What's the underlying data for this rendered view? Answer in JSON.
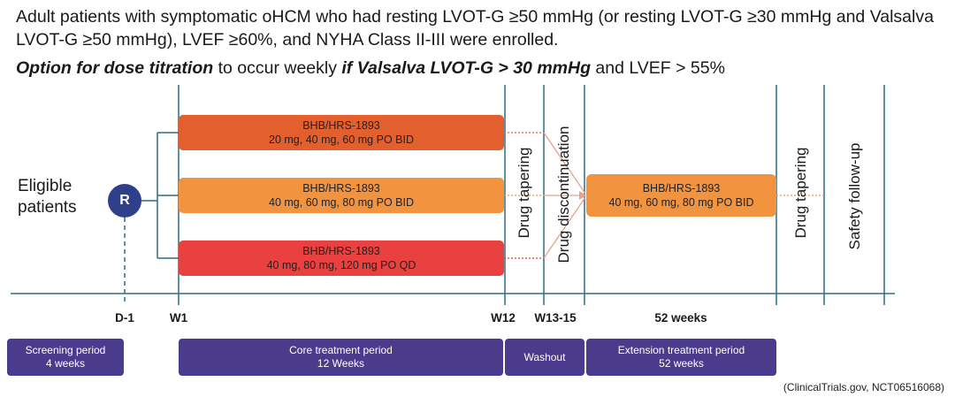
{
  "intro_text": "Adult patients with symptomatic oHCM who had resting LVOT-G ≥50 mmHg (or resting LVOT-G ≥30 mmHg and Valsalva LVOT-G ≥50 mmHg), LVEF ≥60%, and NYHA Class II-III were enrolled.",
  "note": {
    "part1": "Option for dose titration",
    "part2": " to occur weekly ",
    "part3": "if Valsalva LVOT-G > 30 mmHg",
    "part4": " and LVEF > 55%"
  },
  "eligible_label": "Eligible patients",
  "randomize_label": "R",
  "arms": [
    {
      "name": "BHB/HRS-1893",
      "dose": "20 mg, 40 mg, 60 mg PO BID",
      "color": "#e35f2e"
    },
    {
      "name": "BHB/HRS-1893",
      "dose": "40 mg, 60 mg, 80 mg PO BID",
      "color": "#f2933f"
    },
    {
      "name": "BHB/HRS-1893",
      "dose": "40 mg, 80 mg, 120 mg PO QD",
      "color": "#e8413f"
    }
  ],
  "extension_arm": {
    "name": "BHB/HRS-1893",
    "dose": "40 mg, 60 mg, 80 mg PO BID",
    "color": "#f2933f"
  },
  "phase_labels": {
    "tapering_1": "Drug tapering",
    "discontinuation": "Drug discontinuation",
    "tapering_2": "Drug tapering",
    "followup": "Safety follow-up"
  },
  "timepoints": {
    "d_minus_1": "D-1",
    "w1": "W1",
    "w12": "W12",
    "w13_15": "W13-15",
    "weeks_52": "52 weeks"
  },
  "periods": [
    {
      "label": "Screening period",
      "sub": "4 weeks"
    },
    {
      "label": "Core treatment period",
      "sub": "12 Weeks"
    },
    {
      "label": "Washout",
      "sub": ""
    },
    {
      "label": "Extension treatment period",
      "sub": "52 weeks"
    }
  ],
  "source": "(ClinicalTrials.gov, NCT06516068)",
  "colors": {
    "axis": "#2b6f86",
    "period_bg": "#4a3b8c",
    "connector": "#e8a08a",
    "randomize": "#2f3f8a"
  }
}
